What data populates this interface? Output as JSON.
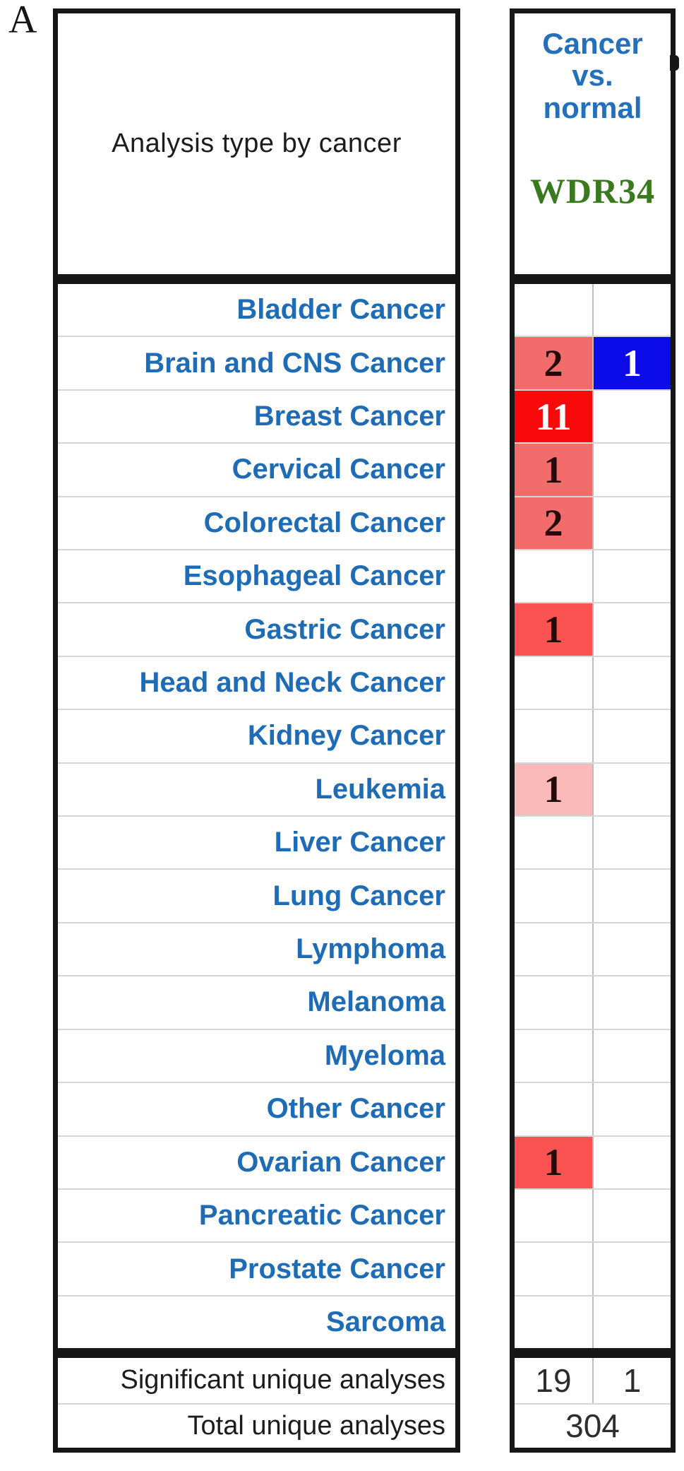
{
  "panel_label": "A",
  "left_header": {
    "title": "Analysis type by cancer"
  },
  "right_header": {
    "column_title_lines": [
      "Cancer",
      "vs.",
      "normal"
    ],
    "gene": "WDR34"
  },
  "colors": {
    "label_blue": "#1e6cb5",
    "header_blue": "#2470bd",
    "gene_green": "#3a7a1e",
    "border_black": "#161616",
    "bright_red": "#f90909",
    "salmon_red": "#f26c6c",
    "medium_red": "#fb5252",
    "light_pink": "#fababa",
    "cell_blue": "#0c0ce8"
  },
  "rows": [
    {
      "label": "Bladder Cancer",
      "up": null,
      "down": null
    },
    {
      "label": "Brain and CNS Cancer",
      "up": {
        "value": "2",
        "bg": "#f26c6c",
        "fg": "#240b0b"
      },
      "down": {
        "value": "1",
        "bg": "#0c0ce8",
        "fg": "#ffffff"
      }
    },
    {
      "label": "Breast Cancer",
      "up": {
        "value": "11",
        "bg": "#f90909",
        "fg": "#ffffff"
      },
      "down": null
    },
    {
      "label": "Cervical Cancer",
      "up": {
        "value": "1",
        "bg": "#f26c6c",
        "fg": "#240b0b"
      },
      "down": null
    },
    {
      "label": "Colorectal Cancer",
      "up": {
        "value": "2",
        "bg": "#f26c6c",
        "fg": "#240b0b"
      },
      "down": null
    },
    {
      "label": "Esophageal Cancer",
      "up": null,
      "down": null
    },
    {
      "label": "Gastric Cancer",
      "up": {
        "value": "1",
        "bg": "#fb5252",
        "fg": "#240b0b"
      },
      "down": null
    },
    {
      "label": "Head and Neck Cancer",
      "up": null,
      "down": null
    },
    {
      "label": "Kidney Cancer",
      "up": null,
      "down": null
    },
    {
      "label": "Leukemia",
      "up": {
        "value": "1",
        "bg": "#fababa",
        "fg": "#240b0b"
      },
      "down": null
    },
    {
      "label": "Liver Cancer",
      "up": null,
      "down": null
    },
    {
      "label": "Lung Cancer",
      "up": null,
      "down": null
    },
    {
      "label": "Lymphoma",
      "up": null,
      "down": null
    },
    {
      "label": "Melanoma",
      "up": null,
      "down": null
    },
    {
      "label": "Myeloma",
      "up": null,
      "down": null
    },
    {
      "label": "Other Cancer",
      "up": null,
      "down": null
    },
    {
      "label": "Ovarian Cancer",
      "up": {
        "value": "1",
        "bg": "#fb5252",
        "fg": "#240b0b"
      },
      "down": null
    },
    {
      "label": "Pancreatic Cancer",
      "up": null,
      "down": null
    },
    {
      "label": "Prostate Cancer",
      "up": null,
      "down": null
    },
    {
      "label": "Sarcoma",
      "up": null,
      "down": null
    }
  ],
  "footer": {
    "significant_label": "Significant unique analyses",
    "significant_up": "19",
    "significant_down": "1",
    "total_label": "Total unique analyses",
    "total_value": "304"
  }
}
